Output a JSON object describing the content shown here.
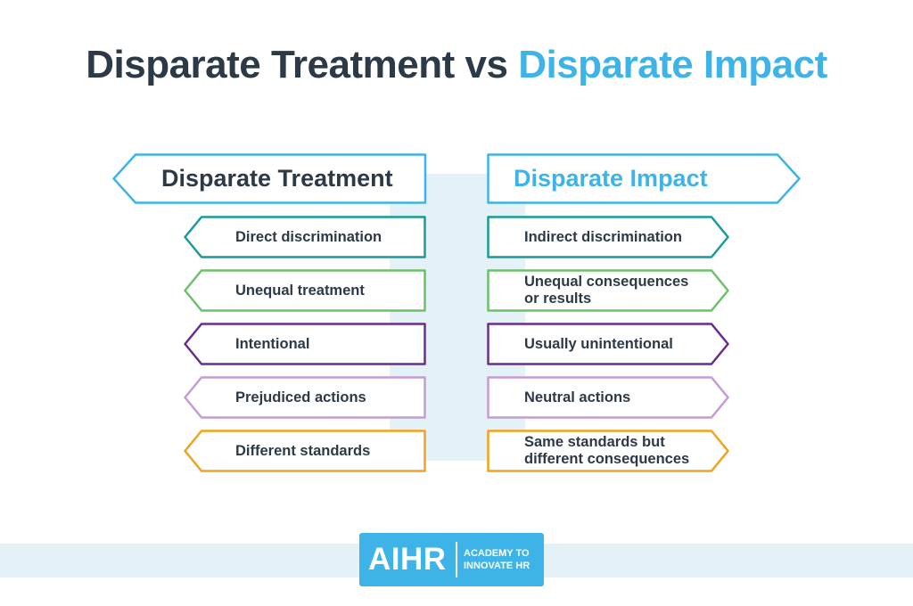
{
  "title": {
    "part1": "Disparate Treatment",
    "connector": "vs",
    "part2": "Disparate Impact"
  },
  "left": {
    "header": "Disparate Treatment",
    "items": [
      {
        "text": "Direct discrimination",
        "color": "#1a9a9a"
      },
      {
        "text": "Unequal treatment",
        "color": "#6cc06c"
      },
      {
        "text": "Intentional",
        "color": "#6a2d8f"
      },
      {
        "text": "Prejudiced actions",
        "color": "#c79ad6"
      },
      {
        "text": "Different standards",
        "color": "#f0a31c"
      }
    ]
  },
  "right": {
    "header": "Disparate Impact",
    "items": [
      {
        "text": "Indirect discrimination",
        "color": "#1a9a9a"
      },
      {
        "text": "Unequal consequences or results",
        "color": "#6cc06c"
      },
      {
        "text": "Usually unintentional",
        "color": "#6a2d8f"
      },
      {
        "text": "Neutral actions",
        "color": "#c79ad6"
      },
      {
        "text": "Same standards but different consequences",
        "color": "#f0a31c"
      }
    ]
  },
  "colors": {
    "header_outline": "#3eb3e8",
    "title_dark": "#2c3a47",
    "title_accent": "#3eb3e8",
    "band": "#e4f1f6"
  },
  "logo": {
    "mark": "AIHR",
    "tagline_1": "ACADEMY TO",
    "tagline_2": "INNOVATE HR"
  }
}
